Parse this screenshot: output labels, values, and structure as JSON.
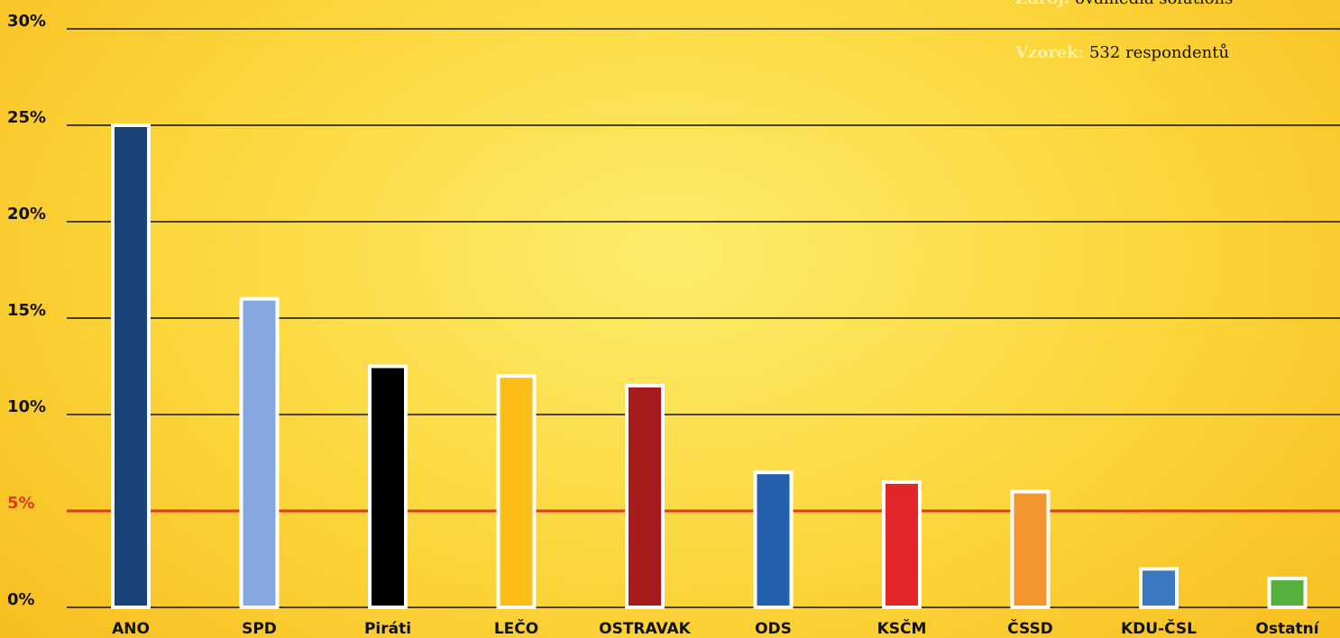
{
  "chart_data": {
    "type": "bar",
    "categories": [
      "ANO",
      "SPD",
      "Piráti",
      "LEČO",
      "OSTRAVAK",
      "ODS",
      "KSČM",
      "ČSSD",
      "KDU-ČSL",
      "Ostatní"
    ],
    "values": [
      25,
      16,
      12.5,
      12,
      11.5,
      7,
      6.5,
      6,
      2,
      1.5
    ],
    "colors": [
      "#1a4379",
      "#84a8dd",
      "#000000",
      "#fbbd18",
      "#a81b1d",
      "#2460ab",
      "#e2262a",
      "#f2952f",
      "#3b78bf",
      "#55b03b"
    ],
    "ylim": [
      0,
      30
    ],
    "yticks": [
      "0%",
      "5%",
      "10%",
      "15%",
      "20%",
      "25%",
      "30%"
    ],
    "threshold": {
      "value": 5,
      "label": "5%",
      "color": "#e03a1e"
    },
    "grid": true
  },
  "source": {
    "key": "Zdroj:",
    "value": "ovamedia solutions"
  },
  "sample": {
    "key": "Vzorek:",
    "value": "532 respondentů"
  }
}
